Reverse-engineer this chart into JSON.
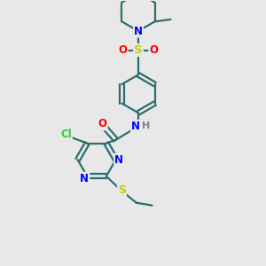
{
  "bg_color": "#e8e8e8",
  "atom_colors": {
    "N": "#0000ff",
    "O": "#ff0000",
    "S": "#cccc00",
    "Cl": "#33cc33",
    "H": "#808080"
  },
  "bond_color": "#2d6e6e",
  "bond_width": 1.6,
  "font_size": 8.5,
  "fig_size": [
    3.0,
    3.0
  ],
  "dpi": 100,
  "xlim": [
    0,
    10
  ],
  "ylim": [
    0,
    10
  ]
}
